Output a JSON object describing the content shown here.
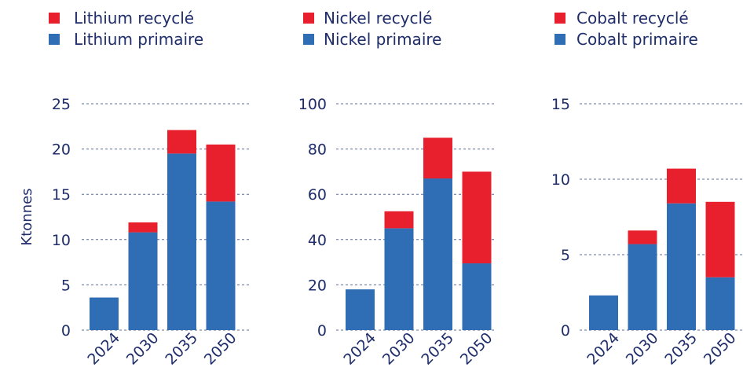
{
  "colors": {
    "recycled": "#e8202e",
    "primary": "#2f6db5",
    "text": "#1f2d6b",
    "grid": "#5a6b9a"
  },
  "y_axis_title": "Ktonnes",
  "chart_data": [
    {
      "type": "bar",
      "stacked": true,
      "categories": [
        "2024",
        "2030",
        "2035",
        "2050"
      ],
      "series": [
        {
          "name": "Lithium primaire",
          "values": [
            3.6,
            10.8,
            19.5,
            14.2
          ]
        },
        {
          "name": "Lithium recyclé",
          "values": [
            0,
            1.1,
            2.6,
            6.3
          ]
        }
      ],
      "legend": [
        "Lithium recyclé",
        "Lithium primaire"
      ],
      "ylabel": "Ktonnes",
      "ylim": [
        0,
        25
      ],
      "yticks": [
        0,
        5,
        10,
        15,
        20,
        25
      ],
      "grid": true,
      "legend_position": "top-left"
    },
    {
      "type": "bar",
      "stacked": true,
      "categories": [
        "2024",
        "2030",
        "2035",
        "2050"
      ],
      "series": [
        {
          "name": "Nickel primaire",
          "values": [
            18,
            45,
            67,
            29.5
          ]
        },
        {
          "name": "Nickel recyclé",
          "values": [
            0,
            7.5,
            18,
            40.5
          ]
        }
      ],
      "legend": [
        "Nickel recyclé",
        "Nickel primaire"
      ],
      "ylim": [
        0,
        100
      ],
      "yticks": [
        0,
        20,
        40,
        60,
        80,
        100
      ],
      "grid": true,
      "legend_position": "top-left"
    },
    {
      "type": "bar",
      "stacked": true,
      "categories": [
        "2024",
        "2030",
        "2035",
        "2050"
      ],
      "series": [
        {
          "name": "Cobalt primaire",
          "values": [
            2.3,
            5.7,
            8.4,
            3.5
          ]
        },
        {
          "name": "Cobalt recyclé",
          "values": [
            0,
            0.9,
            2.3,
            5.0
          ]
        }
      ],
      "legend": [
        "Cobalt recyclé",
        "Cobalt primaire"
      ],
      "ylim": [
        0,
        15
      ],
      "yticks": [
        0,
        5,
        10,
        15
      ],
      "grid": true,
      "legend_position": "top-left"
    }
  ]
}
